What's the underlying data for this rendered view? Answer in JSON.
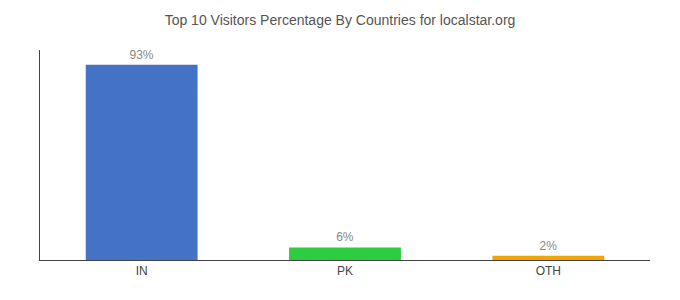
{
  "chart_data": {
    "type": "bar",
    "title": "Top 10 Visitors Percentage By Countries for localstar.org",
    "categories": [
      "IN",
      "PK",
      "OTH"
    ],
    "values": [
      93,
      6,
      2
    ],
    "value_labels": [
      "93%",
      "6%",
      "2%"
    ],
    "colors": [
      "#4472c4",
      "#2ecc40",
      "#f0a500"
    ],
    "ylim": [
      0,
      100
    ],
    "grid": false,
    "data_labels": true,
    "tick_labels": "x"
  }
}
